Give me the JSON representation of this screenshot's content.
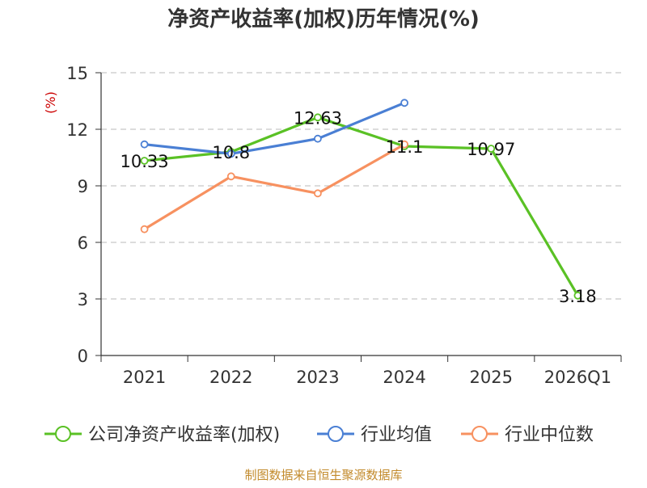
{
  "chart_data": {
    "type": "line",
    "title": "净资产收益率(加权)历年情况(%)",
    "ylabel": "(%)",
    "xlabel": "",
    "categories": [
      "2021",
      "2022",
      "2023",
      "2024",
      "2025",
      "2026Q1"
    ],
    "ylim": [
      0,
      15
    ],
    "yticks": [
      0,
      3,
      6,
      9,
      12,
      15
    ],
    "grid": true,
    "legend_position": "bottom",
    "series": [
      {
        "name": "公司净资产收益率(加权)",
        "color": "#5ac125",
        "values": [
          10.33,
          10.8,
          12.63,
          11.1,
          10.97,
          3.18
        ],
        "labels": [
          "10.33",
          "10.8",
          "12.63",
          "11.1",
          "10.97",
          "3.18"
        ]
      },
      {
        "name": "行业均值",
        "color": "#4a7fd4",
        "values": [
          11.2,
          10.7,
          11.5,
          13.4,
          null,
          null
        ]
      },
      {
        "name": "行业中位数",
        "color": "#f79160",
        "values": [
          6.7,
          9.5,
          8.6,
          11.2,
          null,
          null
        ]
      }
    ]
  },
  "source_text": "制图数据来自恒生聚源数据库"
}
